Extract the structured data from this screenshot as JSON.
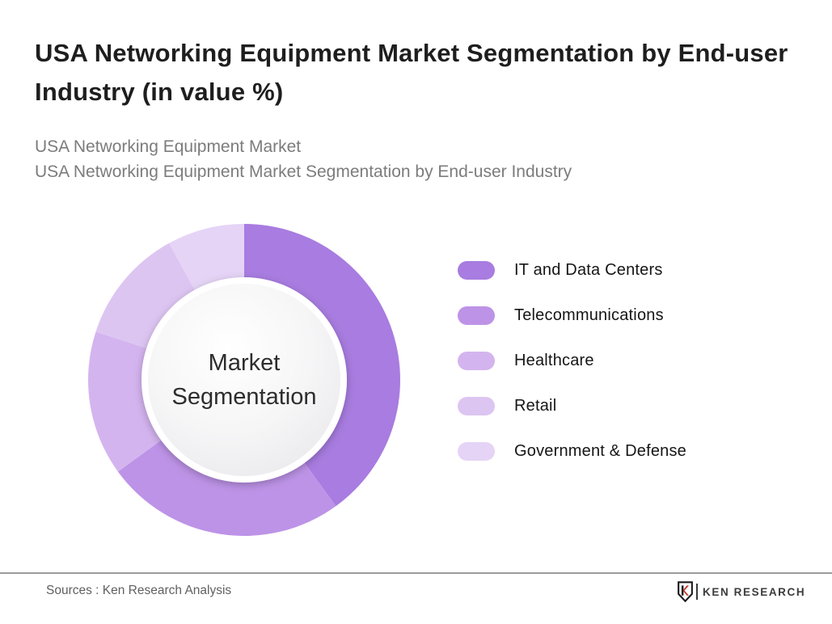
{
  "header": {
    "title": "USA Networking Equipment Market Segmentation by End-user Industry (in value %)",
    "subtitle_line1": "USA Networking Equipment Market",
    "subtitle_line2": "USA Networking Equipment Market Segmentation by End-user Industry"
  },
  "chart_data": {
    "type": "pie",
    "variant": "donut",
    "title": "USA Networking Equipment Market Segmentation by End-user Industry (in value %)",
    "unit": "%",
    "center_label_line1": "Market",
    "center_label_line2": "Segmentation",
    "labels": [
      "IT and Data Centers",
      "Telecommunications",
      "Healthcare",
      "Retail",
      "Government & Defense"
    ],
    "values": [
      40,
      25,
      15,
      12,
      8
    ],
    "values_estimated_from_angles": true,
    "colors": [
      "#a87ce0",
      "#bd93e7",
      "#d4b4ef",
      "#ddc5f2",
      "#e5d4f6"
    ],
    "start_angle_deg": 0,
    "direction": "clockwise",
    "legend_position": "right",
    "data_labels_shown": false
  },
  "legend": {
    "items": [
      {
        "label": "IT and Data Centers",
        "color": "#a87ce0"
      },
      {
        "label": "Telecommunications",
        "color": "#bd93e7"
      },
      {
        "label": "Healthcare",
        "color": "#d4b4ef"
      },
      {
        "label": "Retail",
        "color": "#ddc5f2"
      },
      {
        "label": "Government & Defense",
        "color": "#e5d4f6"
      }
    ]
  },
  "footer": {
    "sources": "Sources : Ken Research Analysis",
    "logo_shield_letter": "K",
    "logo_text": "KEN RESEARCH"
  }
}
